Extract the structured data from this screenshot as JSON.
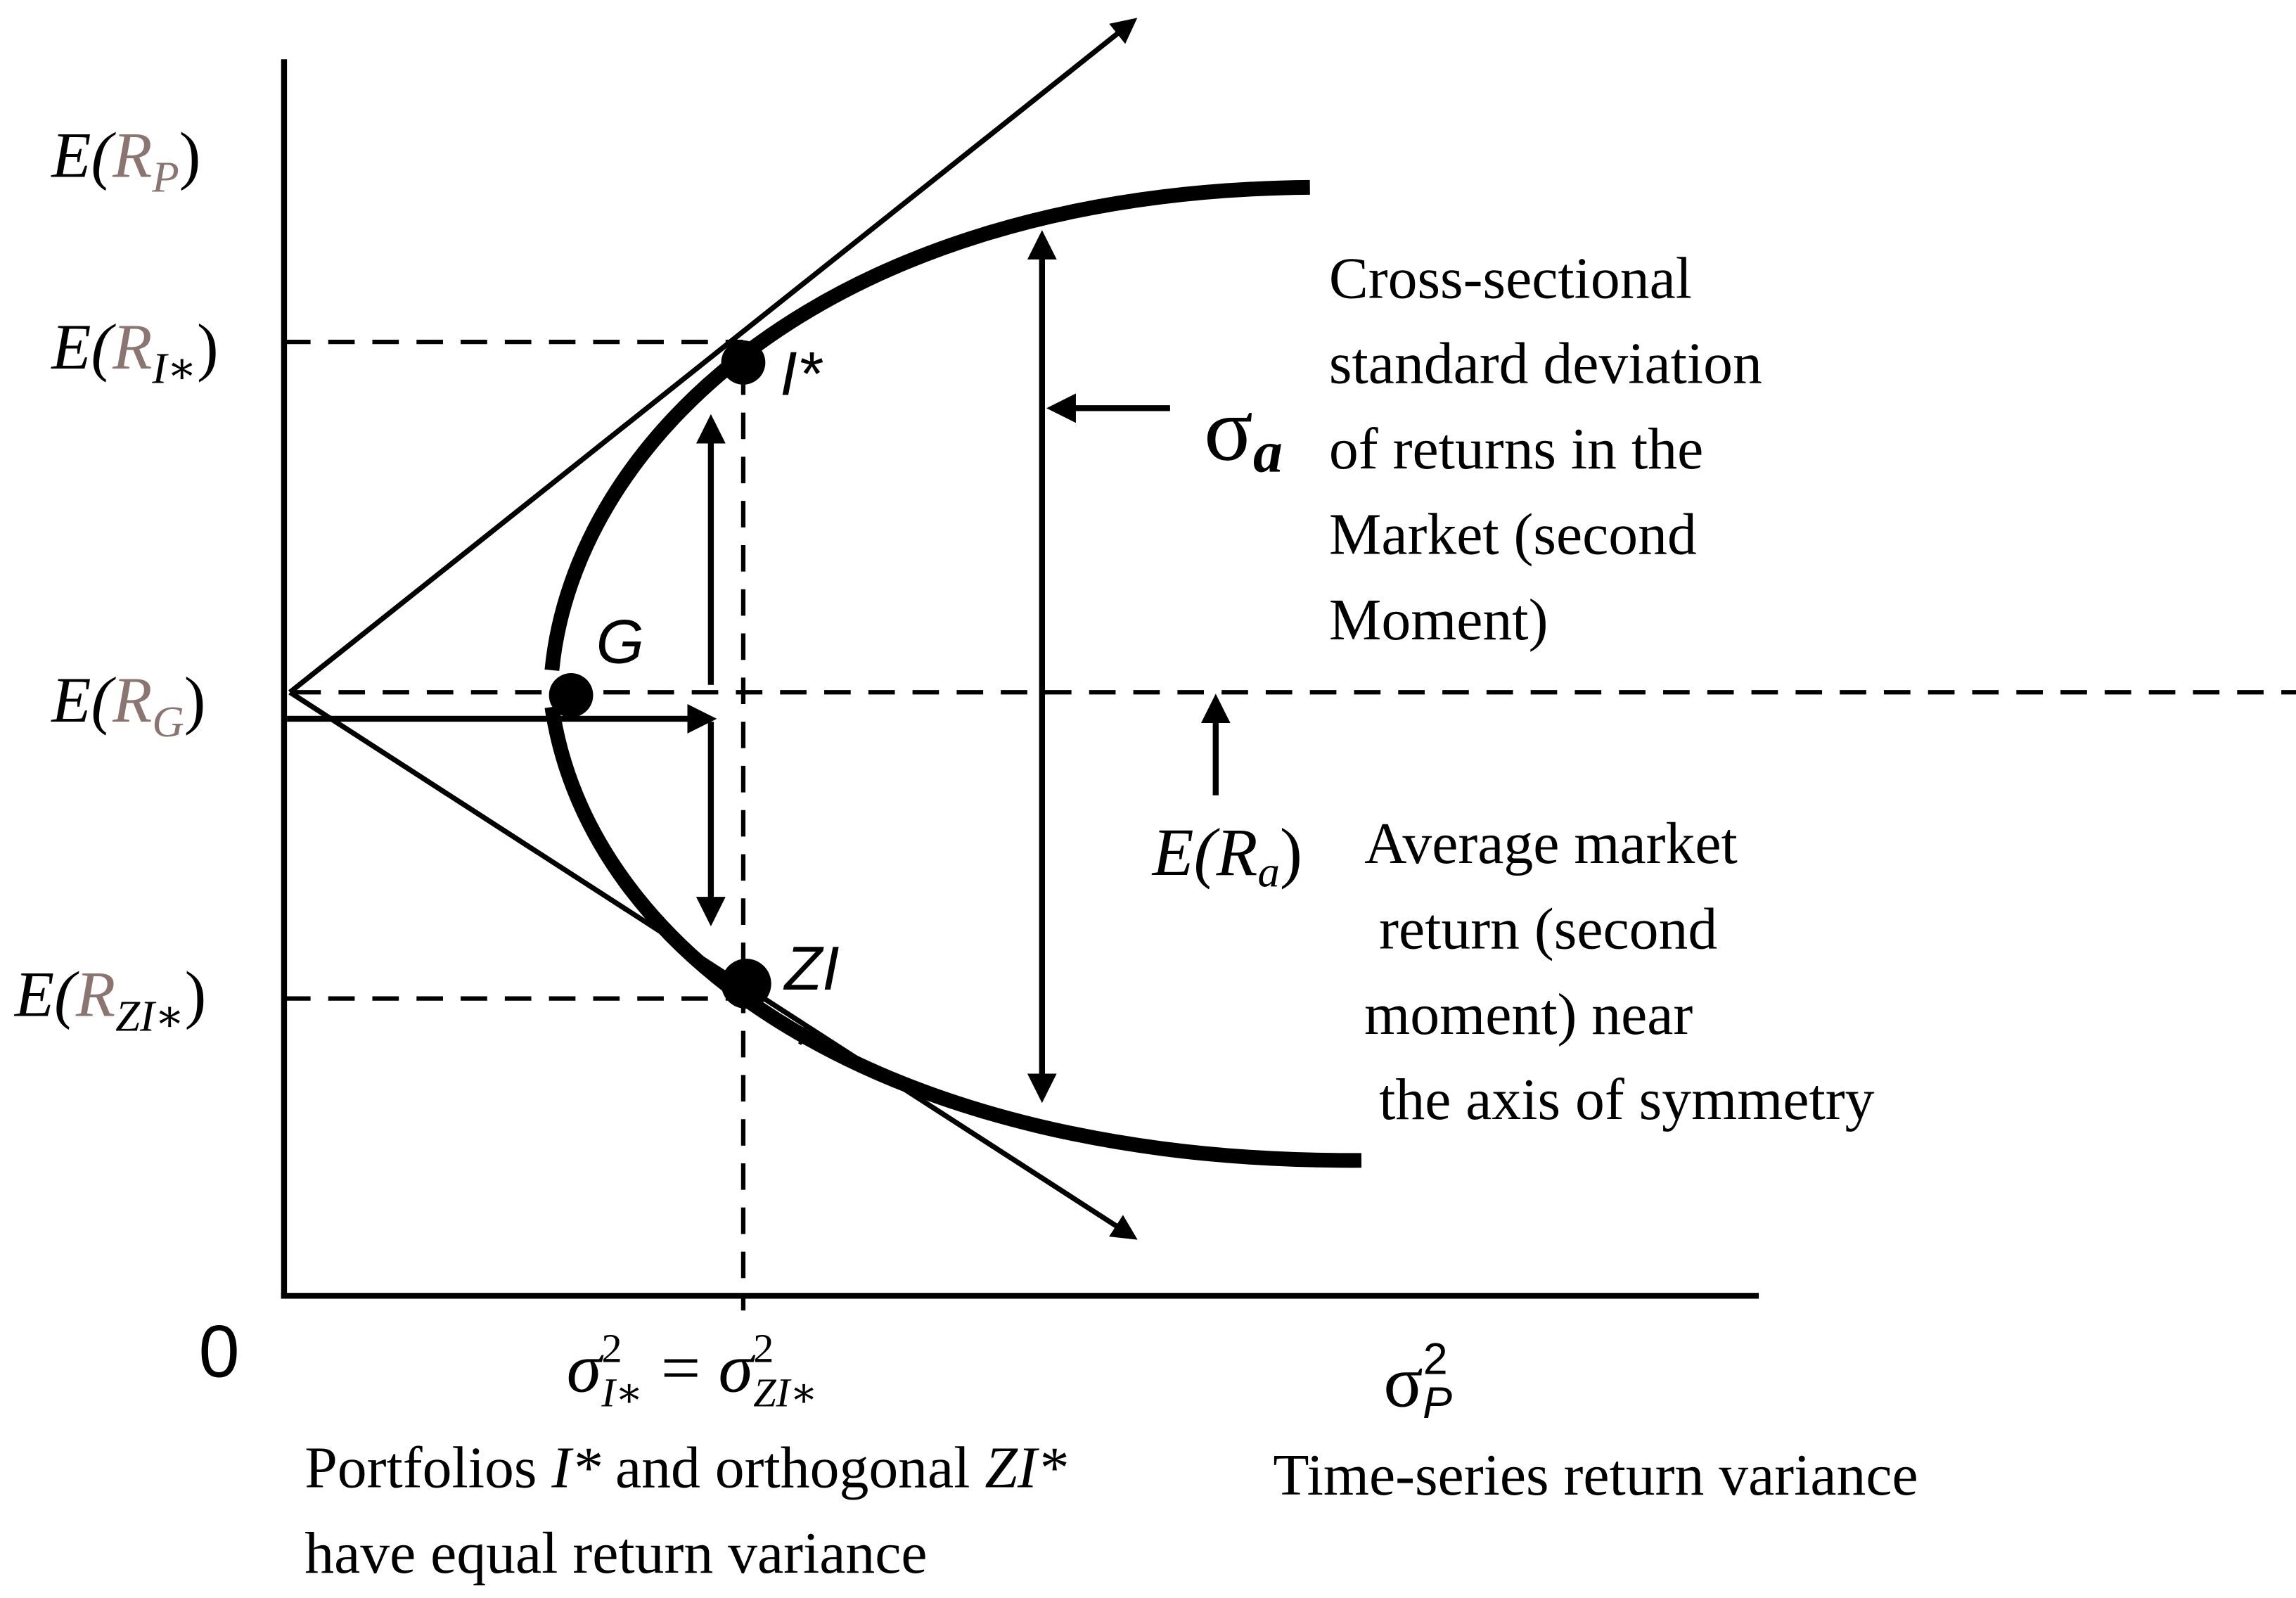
{
  "y_labels": {
    "rp": [
      "E(",
      "R",
      "P",
      ")"
    ],
    "ri": [
      "E(",
      "R",
      "I∗",
      ")"
    ],
    "rg": [
      "E(",
      "R",
      "G",
      ")"
    ],
    "rzi": [
      "E(",
      "R",
      "ZI∗",
      ")"
    ]
  },
  "origin": "0",
  "points": {
    "i_star": "I*",
    "g": "G",
    "zi": "ZI",
    "zi_star": "*"
  },
  "sigma_a": [
    "σ",
    "a"
  ],
  "cross_sectional": [
    "Cross-sectional",
    "standard deviation",
    "of returns in the",
    "Market (second",
    "Moment)"
  ],
  "ra_label": [
    "E(",
    "R",
    "a",
    ")"
  ],
  "average": [
    "Average market",
    " return (second",
    "moment) near",
    " the axis of symmetry"
  ],
  "x_label_equal": [
    "σ",
    "2",
    "I∗",
    " = ",
    "σ",
    "2",
    "ZI∗"
  ],
  "x_label_p": [
    "σ",
    "2",
    "P"
  ],
  "caption_left": {
    "line1": [
      "Portfolios ",
      "I*",
      " and orthogonal ",
      "ZI*"
    ],
    "line2": "have equal return variance"
  },
  "caption_right": "Time-series return variance"
}
